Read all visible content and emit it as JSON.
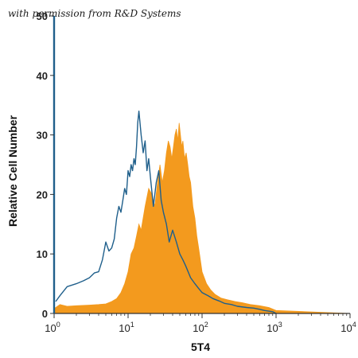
{
  "watermark": "with permission from R&D Systems",
  "colors": {
    "filled": "#F39A1E",
    "outline": "#1F5F8B",
    "axis": "#333333"
  },
  "chart_data": {
    "type": "area",
    "xlabel": "5T4",
    "ylabel": "Relative Cell Number",
    "xscale": "log",
    "xlim": [
      1,
      10000
    ],
    "ylim": [
      0,
      50
    ],
    "grid": false,
    "x_ticks": [
      {
        "base": "10",
        "exp": "0"
      },
      {
        "base": "10",
        "exp": "1"
      },
      {
        "base": "10",
        "exp": "2"
      },
      {
        "base": "10",
        "exp": "3"
      },
      {
        "base": "10",
        "exp": "4"
      }
    ],
    "y_ticks": [
      "0",
      "10",
      "20",
      "30",
      "40",
      "50"
    ],
    "series": [
      {
        "style": "filled",
        "x": [
          1,
          1.2,
          1.5,
          2,
          3,
          4,
          5,
          6,
          7,
          8,
          9,
          10,
          11,
          12,
          13,
          14,
          15,
          17,
          19,
          21,
          23,
          25,
          27,
          29,
          31,
          33,
          35,
          37,
          39,
          41,
          43,
          45,
          47,
          49,
          51,
          53,
          55,
          58,
          61,
          64,
          67,
          70,
          75,
          80,
          85,
          90,
          100,
          115,
          130,
          150,
          180,
          220,
          280,
          350,
          450,
          600,
          800,
          1000,
          10000
        ],
        "y": [
          0.8,
          1.5,
          1.2,
          1.3,
          1.4,
          1.5,
          1.6,
          2,
          2.5,
          3.5,
          5,
          7,
          10,
          11,
          13,
          15,
          14,
          18,
          21,
          20,
          18,
          22,
          25,
          22,
          24,
          27,
          29,
          28,
          26,
          28,
          30,
          31,
          29,
          32,
          30,
          28,
          29,
          26,
          27,
          25,
          23,
          22,
          18,
          16,
          13,
          11,
          7,
          5,
          4,
          3.2,
          2.6,
          2.3,
          2,
          1.8,
          1.5,
          1.3,
          1,
          0.5,
          0
        ]
      },
      {
        "style": "outline",
        "x": [
          1.05,
          1.2,
          1.5,
          2,
          2.5,
          3,
          3.5,
          4,
          4.5,
          5,
          5.5,
          6,
          6.5,
          7,
          7.5,
          8,
          8.5,
          9,
          9.5,
          10,
          10.5,
          11,
          11.5,
          12,
          12.5,
          13,
          13.5,
          14,
          15,
          16,
          17,
          18,
          19,
          20,
          22,
          24,
          26,
          28,
          30,
          33,
          36,
          40,
          45,
          50,
          55,
          60,
          70,
          80,
          90,
          100,
          120,
          140,
          170,
          200,
          250,
          300,
          400,
          500,
          600,
          700,
          900,
          1000
        ],
        "y": [
          2,
          3,
          4.5,
          5,
          5.5,
          6,
          6.8,
          7,
          9,
          12,
          10.5,
          11,
          12.5,
          16,
          18,
          17,
          19,
          21,
          20,
          24,
          23,
          25,
          24,
          26,
          25,
          28,
          32,
          34,
          30,
          27,
          29,
          24,
          26,
          23,
          18,
          22,
          24,
          19,
          17,
          15,
          12,
          14,
          12,
          10,
          9,
          8,
          6,
          5,
          4.2,
          3.5,
          3,
          2.5,
          2.1,
          1.7,
          1.5,
          1.2,
          1,
          0.9,
          0.7,
          0.5,
          0.3,
          0
        ]
      }
    ]
  }
}
